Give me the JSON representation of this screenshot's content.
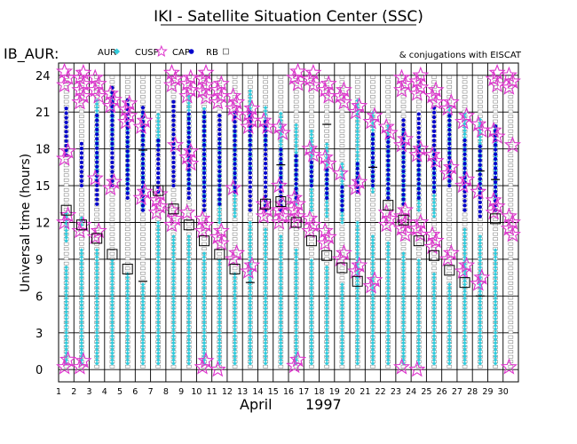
{
  "chart_data": {
    "type": "scatter",
    "title": "IKI - Satellite Situation Center (SSC)",
    "satellite": "IB_AUR:",
    "note": "& conjugations with EISCAT",
    "xlabel_month": "April",
    "xlabel_year": "1997",
    "ylabel": "Universal time (hours)",
    "x_range": [
      1,
      31
    ],
    "ylim": [
      -1,
      25
    ],
    "x_ticks": [
      "1",
      "2",
      "3",
      "4",
      "5",
      "6",
      "7",
      "8",
      "9",
      "10",
      "11",
      "12",
      "13",
      "14",
      "15",
      "16",
      "17",
      "18",
      "19",
      "20",
      "21",
      "22",
      "23",
      "24",
      "25",
      "26",
      "27",
      "28",
      "29",
      "30"
    ],
    "y_ticks": [
      0,
      3,
      6,
      9,
      12,
      15,
      18,
      21,
      24
    ],
    "legend": [
      {
        "label": "AUR",
        "symbol": "cyan-diamond",
        "color": "#33ccdd"
      },
      {
        "label": "CUSP",
        "symbol": "magenta-star",
        "color": "#dd33cc"
      },
      {
        "label": "CAP",
        "symbol": "blue-dot",
        "color": "#0000cc"
      },
      {
        "label": "RB",
        "symbol": "gray-square",
        "color": "#666666"
      }
    ],
    "series": {
      "aur_spans": [
        [
          [
            0.5,
            8.5
          ],
          [
            10.5,
            13.0
          ]
        ],
        [
          [
            0.5,
            10.0
          ],
          [
            11.8,
            12.5
          ]
        ],
        [
          [
            0.5,
            10.0
          ],
          [
            15.5,
            22.0
          ]
        ],
        [
          [
            0.5,
            9.0
          ],
          [
            18.0,
            22.5
          ]
        ],
        [
          [
            0.5,
            8.0
          ],
          [
            14.5,
            20.5
          ]
        ],
        [
          [
            0.5,
            7.0
          ],
          [
            13.0,
            21.0
          ]
        ],
        [
          [
            0.5,
            12.0
          ],
          [
            18.0,
            21.0
          ]
        ],
        [
          [
            0.5,
            11.0
          ]
        ],
        [
          [
            0.5,
            11.0
          ],
          [
            15.0,
            22.5
          ]
        ],
        [
          [
            0.5,
            9.5
          ],
          [
            14.0,
            21.5
          ]
        ],
        [
          [
            0.5,
            9.0
          ],
          [
            12.0,
            19.0
          ]
        ],
        [
          [
            0.5,
            8.0
          ],
          [
            12.5,
            20.0
          ]
        ],
        [
          [
            0.5,
            12.0
          ],
          [
            16.0,
            23.0
          ]
        ],
        [
          [
            0.5,
            11.5
          ],
          [
            18.0,
            21.5
          ]
        ],
        [
          [
            0.5,
            11.0
          ],
          [
            15.0,
            21.0
          ]
        ],
        [
          [
            0.5,
            10.0
          ],
          [
            13.5,
            20.0
          ]
        ],
        [
          [
            0.5,
            9.0
          ],
          [
            13.0,
            19.5
          ]
        ],
        [
          [
            0.5,
            8.5
          ],
          [
            12.5,
            18.5
          ]
        ],
        [
          [
            0.5,
            7.0
          ],
          [
            12.0,
            17.0
          ]
        ],
        [
          [
            0.5,
            12.0
          ],
          [
            15.5,
            22.0
          ]
        ],
        [
          [
            0.5,
            11.0
          ],
          [
            14.5,
            21.0
          ]
        ],
        [
          [
            0.5,
            10.5
          ],
          [
            14.0,
            20.0
          ]
        ],
        [
          [
            0.5,
            9.5
          ],
          [
            13.5,
            19.5
          ]
        ],
        [
          [
            0.5,
            9.0
          ],
          [
            13.0,
            18.5
          ]
        ],
        [
          [
            0.5,
            8.0
          ],
          [
            12.5,
            18.0
          ]
        ],
        [
          [
            0.5,
            7.0
          ],
          [
            15.0,
            21.5
          ]
        ],
        [
          [
            0.5,
            11.5
          ],
          [
            15.0,
            21.0
          ]
        ],
        [
          [
            0.5,
            11.0
          ],
          [
            14.5,
            20.5
          ]
        ],
        [
          [
            0.5,
            10.0
          ],
          [
            14.0,
            20.0
          ]
        ]
      ],
      "cap_spans": [
        [
          [
            17.5,
            21.5
          ]
        ],
        [
          [
            15.0,
            18.5
          ]
        ],
        [
          [
            13.5,
            21.0
          ]
        ],
        [
          [
            15.0,
            23.0
          ]
        ],
        [
          [
            14.0,
            22.0
          ]
        ],
        [
          [
            13.0,
            21.5
          ]
        ],
        [
          [
            14.5,
            19.0
          ]
        ],
        [
          [
            15.0,
            22.0
          ]
        ],
        [
          [
            14.0,
            21.0
          ]
        ],
        [
          [
            13.0,
            21.0
          ]
        ],
        [
          [
            13.5,
            21.0
          ]
        ],
        [
          [
            14.5,
            21.0
          ]
        ],
        [
          [
            13.0,
            21.0
          ]
        ],
        [
          [
            13.0,
            20.5
          ]
        ],
        [
          [
            13.0,
            18.0
          ]
        ],
        [
          [
            14.0,
            17.5
          ]
        ],
        [
          [
            15.0,
            17.0
          ]
        ],
        [
          [
            14.0,
            16.5
          ]
        ],
        [
          [
            13.0,
            15.0
          ]
        ],
        [
          [
            14.5,
            17.0
          ]
        ],
        [
          [
            15.0,
            19.5
          ]
        ],
        [
          [
            14.0,
            19.0
          ]
        ],
        [
          [
            13.5,
            20.5
          ]
        ],
        [
          [
            14.0,
            21.0
          ]
        ],
        [
          [
            14.5,
            21.5
          ]
        ],
        [
          [
            15.0,
            21.0
          ]
        ],
        [
          [
            13.0,
            19.0
          ]
        ],
        [
          [
            12.5,
            18.5
          ]
        ],
        [
          [
            13.0,
            20.0
          ]
        ]
      ],
      "cusp_points": [
        [
          0.2,
          0.8,
          12.0,
          12.6,
          17.2,
          17.8,
          23.2,
          23.8,
          24.3
        ],
        [
          0.2,
          0.7,
          11.3,
          11.8,
          21.8,
          22.3,
          22.8,
          23.3,
          23.8,
          24.2
        ],
        [
          10.8,
          11.3,
          15.6,
          22.3,
          22.8,
          23.3,
          23.8
        ],
        [
          14.8,
          15.3,
          21.5,
          22.0,
          22.5
        ],
        [
          20.2,
          20.7,
          21.2,
          21.7
        ],
        [
          14.0,
          14.5,
          19.8,
          20.3
        ],
        [
          12.8,
          13.3,
          13.8,
          14.3
        ],
        [
          11.8,
          12.3,
          13.0,
          18.3,
          23.2,
          23.7,
          24.2
        ],
        [
          12.8,
          16.8,
          17.3,
          17.8,
          22.3,
          22.8,
          23.3,
          23.8
        ],
        [
          0.2,
          0.7,
          11.3,
          11.8,
          12.3,
          22.2,
          22.7,
          23.2,
          23.7,
          24.2
        ],
        [
          0.0,
          10.3,
          10.8,
          11.3,
          21.8,
          22.3,
          22.8,
          23.3
        ],
        [
          9.0,
          9.5,
          14.8,
          20.8,
          21.3,
          21.8,
          22.3
        ],
        [
          8.0,
          8.5,
          19.8,
          20.3,
          20.8,
          21.3
        ],
        [
          12.5,
          13.0,
          13.5,
          19.8,
          20.3
        ],
        [
          12.0,
          12.5,
          13.0,
          13.5,
          15.0,
          19.3,
          19.8
        ],
        [
          0.3,
          0.8,
          12.0,
          12.5,
          13.0,
          13.5,
          14.0,
          23.3,
          23.8,
          24.3
        ],
        [
          11.3,
          11.8,
          12.3,
          17.5,
          18.0,
          23.2,
          23.7,
          24.2
        ],
        [
          10.3,
          10.8,
          11.3,
          16.8,
          17.3,
          22.3,
          22.8,
          23.3
        ],
        [
          9.0,
          9.5,
          16.0,
          21.8,
          22.3,
          22.8
        ],
        [
          8.0,
          8.5,
          14.8,
          15.3,
          21.0,
          21.5
        ],
        [
          6.8,
          7.3,
          20.2,
          20.7
        ],
        [
          11.8,
          12.3,
          12.8,
          19.3,
          19.8
        ],
        [
          0.2,
          11.0,
          11.5,
          12.0,
          12.5,
          13.0,
          18.3,
          18.8,
          22.8,
          23.3,
          23.8
        ],
        [
          0.0,
          11.0,
          11.5,
          12.0,
          17.5,
          18.0,
          22.5,
          23.0,
          23.5,
          24.0
        ],
        [
          10.0,
          10.5,
          11.0,
          17.0,
          17.5,
          21.8,
          22.3,
          22.8
        ],
        [
          9.0,
          9.5,
          16.0,
          16.5,
          21.3,
          21.8
        ],
        [
          8.0,
          8.5,
          15.0,
          15.5,
          20.2,
          20.7
        ],
        [
          7.0,
          7.5,
          14.5,
          19.5,
          20.0
        ],
        [
          12.8,
          13.3,
          13.8,
          19.0,
          19.5,
          23.2,
          23.7,
          24.2
        ],
        [
          0.2,
          11.0,
          11.5,
          12.0,
          12.5,
          18.3,
          23.0,
          23.5,
          24.0
        ]
      ],
      "eiscat_boxes": [
        [
          1,
          13.0
        ],
        [
          2,
          11.8
        ],
        [
          3,
          10.7
        ],
        [
          4,
          9.4
        ],
        [
          5,
          8.2
        ],
        [
          7,
          14.6
        ],
        [
          8,
          13.1
        ],
        [
          9,
          11.8
        ],
        [
          10,
          10.5
        ],
        [
          11,
          9.4
        ],
        [
          12,
          8.2
        ],
        [
          14,
          13.5
        ],
        [
          15,
          13.7
        ],
        [
          16,
          12.0
        ],
        [
          17,
          10.5
        ],
        [
          18,
          9.3
        ],
        [
          19,
          8.3
        ],
        [
          20,
          7.2
        ],
        [
          22,
          13.4
        ],
        [
          23,
          12.2
        ],
        [
          24,
          10.5
        ],
        [
          25,
          9.3
        ],
        [
          26,
          8.1
        ],
        [
          27,
          7.1
        ],
        [
          29,
          12.3
        ]
      ],
      "eiscat_lines": [
        [
          6,
          7.2
        ],
        [
          6,
          17.9
        ],
        [
          13,
          7.1
        ],
        [
          15,
          16.7
        ],
        [
          18,
          20.0
        ],
        [
          21,
          16.5
        ],
        [
          28,
          6.0
        ],
        [
          28,
          16.2
        ],
        [
          29,
          15.5
        ]
      ]
    }
  }
}
